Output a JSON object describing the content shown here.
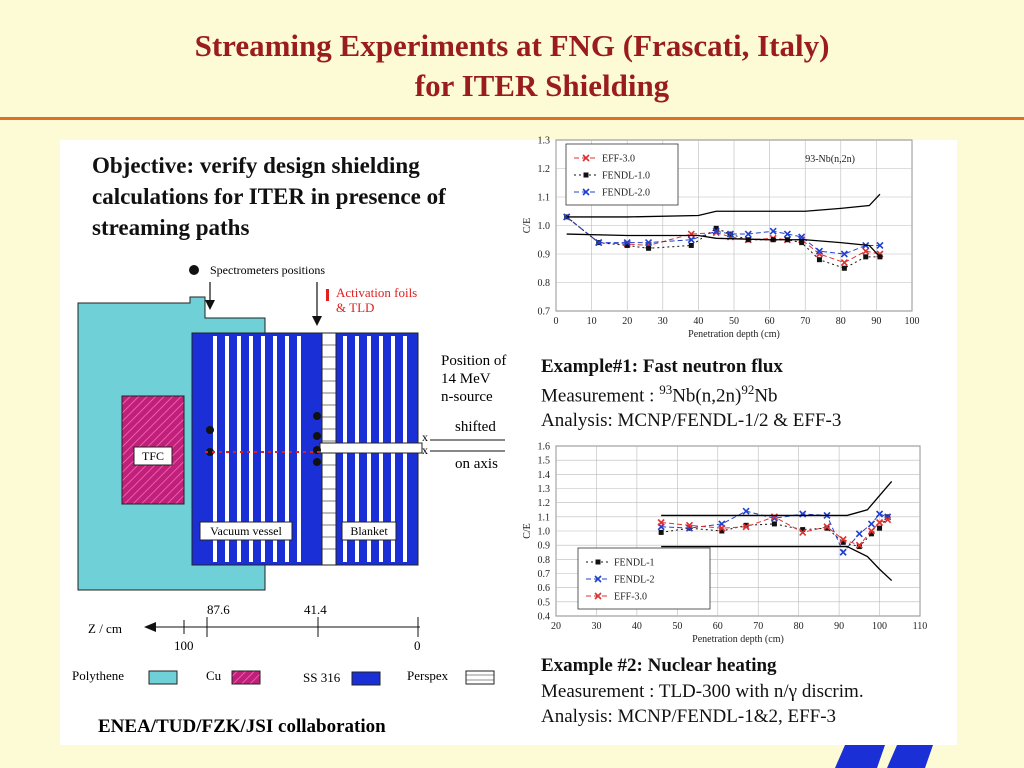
{
  "title": {
    "line1": "Streaming Experiments at FNG (Frascati, Italy)",
    "line2": "for ITER Shielding"
  },
  "objective": "Objective: verify design shielding calculations for ITER in presence of streaming paths",
  "diagram": {
    "spectrometers": "Spectrometers positions",
    "activation_foils_line1": "Activation foils",
    "activation_foils_line2": "& TLD",
    "tfc": "TFC",
    "vacuum_vessel": "Vacuum vessel",
    "blanket": "Blanket",
    "position_line1": "Position of",
    "position_line2": "14 MeV",
    "position_line3": "n-source",
    "shifted": "shifted",
    "on_axis": "on axis",
    "x_mark": "x",
    "axis_label": "Z / cm",
    "tick_100": "100",
    "tick_876": "87.6",
    "tick_414": "41.4",
    "tick_0": "0",
    "legend": {
      "polythene": "Polythene",
      "cu": "Cu",
      "ss316": "SS 316",
      "perspex": "Perspex"
    }
  },
  "example1": {
    "title": "Example#1: Fast neutron flux",
    "measurement_prefix": "Measurement : ",
    "measurement_sup1": "93",
    "measurement_mid": "Nb(n,2n)",
    "measurement_sup2": "92",
    "measurement_end": "Nb",
    "analysis": "Analysis: MCNP/FENDL-1/2 & EFF-3"
  },
  "example2": {
    "title": "Example #2: Nuclear heating",
    "measurement_prefix": "Measurement : TLD-300 with n/",
    "measurement_gamma": "γ",
    "measurement_end": " discrim.",
    "analysis": "Analysis: MCNP/FENDL-1&2,  EFF-3"
  },
  "collaboration": "ENEA/TUD/FZK/JSI collaboration",
  "chart_data": [
    {
      "type": "line",
      "annotation": "93-Nb(n,2n)",
      "xlabel": "Penetration depth (cm)",
      "ylabel": "C/E",
      "xlim": [
        0,
        100
      ],
      "ylim": [
        0.7,
        1.3
      ],
      "xticks": [
        "0",
        "10",
        "20",
        "30",
        "40",
        "50",
        "60",
        "70",
        "80",
        "90",
        "100"
      ],
      "yticks": [
        "0.7",
        "0.8",
        "0.9",
        "1.0",
        "1.1",
        "1.2",
        "1.3"
      ],
      "grid": true,
      "legend_position": "top-left",
      "series": [
        {
          "name": "EFF-3.0",
          "color": "#e03030",
          "dash": "5,3",
          "x": [
            3,
            12,
            20,
            26,
            38,
            45,
            49,
            54,
            61,
            65,
            69,
            74,
            81,
            87,
            91
          ],
          "y": [
            1.03,
            0.94,
            0.935,
            0.93,
            0.97,
            0.975,
            0.96,
            0.95,
            0.955,
            0.95,
            0.95,
            0.9,
            0.87,
            0.91,
            0.9
          ]
        },
        {
          "name": "FENDL-1.0",
          "color": "#111111",
          "dash": "2,3",
          "x": [
            3,
            12,
            20,
            26,
            38,
            45,
            49,
            54,
            61,
            65,
            69,
            74,
            81,
            87,
            91
          ],
          "y": [
            1.03,
            0.94,
            0.93,
            0.92,
            0.93,
            0.99,
            0.97,
            0.95,
            0.95,
            0.95,
            0.94,
            0.88,
            0.85,
            0.89,
            0.89
          ]
        },
        {
          "name": "FENDL-2.0",
          "color": "#2040d0",
          "dash": "5,3",
          "x": [
            3,
            12,
            20,
            26,
            38,
            45,
            49,
            54,
            61,
            65,
            69,
            74,
            81,
            87,
            91
          ],
          "y": [
            1.03,
            0.94,
            0.94,
            0.94,
            0.95,
            0.98,
            0.97,
            0.97,
            0.98,
            0.97,
            0.96,
            0.91,
            0.9,
            0.93,
            0.93
          ]
        },
        {
          "name": "",
          "color": "#000000",
          "dash": "",
          "x": [
            3,
            20,
            40,
            45,
            60,
            70,
            80,
            88,
            91
          ],
          "y": [
            1.03,
            1.03,
            1.035,
            1.05,
            1.05,
            1.05,
            1.06,
            1.07,
            1.11
          ]
        },
        {
          "name": "",
          "color": "#000000",
          "dash": "",
          "x": [
            3,
            20,
            40,
            45,
            60,
            70,
            80,
            88,
            91
          ],
          "y": [
            0.97,
            0.965,
            0.965,
            0.955,
            0.95,
            0.95,
            0.94,
            0.93,
            0.89
          ]
        }
      ]
    },
    {
      "type": "line",
      "xlabel": "Penetration depth (cm)",
      "ylabel": "C/E",
      "xlim": [
        20,
        110
      ],
      "ylim": [
        0.4,
        1.6
      ],
      "xticks": [
        "20",
        "30",
        "40",
        "50",
        "60",
        "70",
        "80",
        "90",
        "100",
        "110"
      ],
      "yticks": [
        "0.4",
        "0.5",
        "0.6",
        "0.7",
        "0.8",
        "0.9",
        "1.0",
        "1.1",
        "1.2",
        "1.3",
        "1.4",
        "1.5",
        "1.6"
      ],
      "grid": true,
      "legend_position": "bottom-left",
      "series": [
        {
          "name": "FENDL-1",
          "color": "#111111",
          "dash": "2,3",
          "x": [
            46,
            53,
            61,
            67,
            74,
            81,
            87,
            91,
            95,
            98,
            100,
            102
          ],
          "y": [
            0.99,
            1.02,
            1.0,
            1.04,
            1.05,
            1.01,
            1.02,
            0.92,
            0.89,
            0.98,
            1.02,
            1.1
          ]
        },
        {
          "name": "FENDL-2",
          "color": "#2040d0",
          "dash": "5,3",
          "x": [
            46,
            53,
            61,
            67,
            74,
            81,
            87,
            91,
            95,
            98,
            100,
            102
          ],
          "y": [
            1.03,
            1.02,
            1.05,
            1.14,
            1.09,
            1.12,
            1.11,
            0.85,
            0.98,
            1.05,
            1.12,
            1.1
          ]
        },
        {
          "name": "EFF-3.0",
          "color": "#e03030",
          "dash": "5,3",
          "x": [
            46,
            53,
            61,
            67,
            74,
            81,
            87,
            91,
            95,
            98,
            100,
            102
          ],
          "y": [
            1.06,
            1.04,
            1.02,
            1.03,
            1.1,
            0.99,
            1.03,
            0.94,
            0.9,
            1.0,
            1.06,
            1.08
          ]
        },
        {
          "name": "",
          "color": "#000000",
          "dash": "",
          "x": [
            46,
            60,
            80,
            92,
            97,
            100,
            103
          ],
          "y": [
            1.11,
            1.11,
            1.11,
            1.11,
            1.15,
            1.25,
            1.35
          ]
        },
        {
          "name": "",
          "color": "#000000",
          "dash": "",
          "x": [
            46,
            60,
            80,
            92,
            97,
            100,
            103
          ],
          "y": [
            0.89,
            0.89,
            0.89,
            0.89,
            0.82,
            0.73,
            0.65
          ]
        }
      ]
    }
  ],
  "colors": {
    "title": "#9b1c1c",
    "rule": "#e07020",
    "polythene": "#6fd0d8",
    "cu": "#c0207a",
    "ss316": "#1a2fd6",
    "activation": "#e02020"
  }
}
